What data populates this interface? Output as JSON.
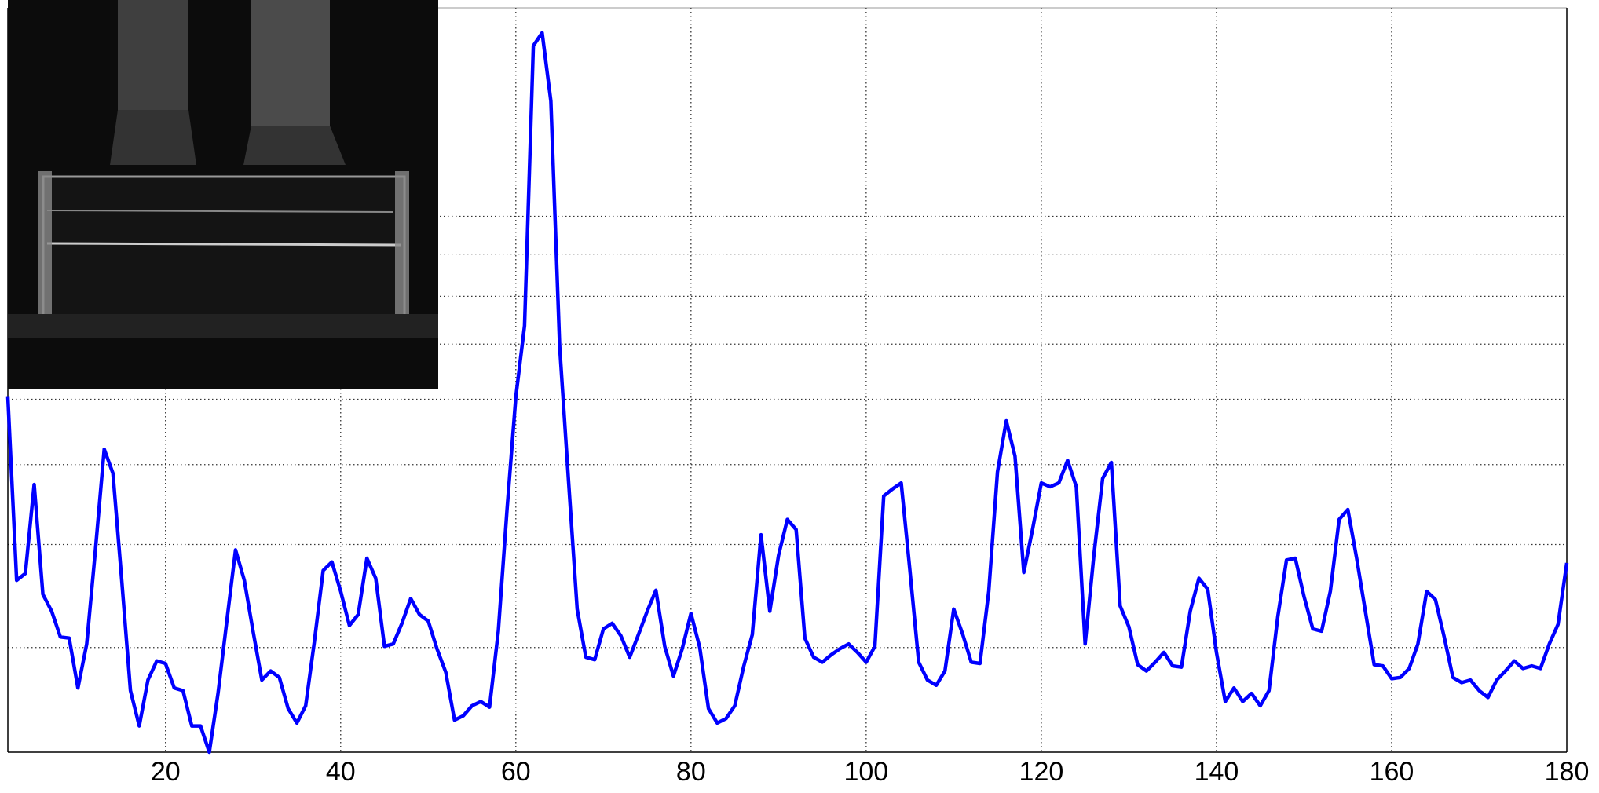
{
  "chart_data": {
    "type": "line",
    "color": "#0000ff",
    "yscale": "log",
    "grid": true,
    "xlim": [
      2,
      180
    ],
    "xticks": [
      20,
      40,
      60,
      80,
      100,
      120,
      140,
      160,
      180
    ],
    "ylim": [
      2.24,
      17.9
    ],
    "yticks": [
      3,
      4,
      5,
      6,
      7,
      8,
      9,
      10
    ],
    "x": [
      2,
      3,
      4,
      5,
      6,
      7,
      8,
      9,
      10,
      11,
      12,
      13,
      14,
      15,
      16,
      17,
      18,
      19,
      20,
      21,
      22,
      23,
      24,
      25,
      26,
      27,
      28,
      29,
      30,
      31,
      32,
      33,
      34,
      35,
      36,
      37,
      38,
      39,
      40,
      41,
      42,
      43,
      44,
      45,
      46,
      47,
      48,
      49,
      50,
      51,
      52,
      53,
      54,
      55,
      56,
      57,
      58,
      59,
      60,
      61,
      62,
      63,
      64,
      65,
      66,
      67,
      68,
      69,
      70,
      71,
      72,
      73,
      74,
      75,
      76,
      77,
      78,
      79,
      80,
      81,
      82,
      83,
      84,
      85,
      86,
      87,
      88,
      89,
      90,
      91,
      92,
      93,
      94,
      95,
      96,
      97,
      98,
      99,
      100,
      101,
      102,
      103,
      104,
      105,
      106,
      107,
      108,
      109,
      110,
      111,
      112,
      113,
      114,
      115,
      116,
      117,
      118,
      119,
      120,
      121,
      122,
      123,
      124,
      125,
      126,
      127,
      128,
      129,
      130,
      131,
      132,
      133,
      134,
      135,
      136,
      137,
      138,
      139,
      140,
      141,
      142,
      143,
      144,
      145,
      146,
      147,
      148,
      149,
      150,
      151,
      152,
      153,
      154,
      155,
      156,
      157,
      158,
      159,
      160,
      161,
      162,
      163,
      164,
      165,
      166,
      167,
      168,
      169,
      170,
      171,
      172,
      173,
      174,
      175,
      176,
      177,
      178,
      179,
      180
    ],
    "values": [
      6.04,
      3.62,
      3.69,
      4.73,
      3.48,
      3.32,
      3.09,
      3.08,
      2.68,
      3.03,
      3.94,
      5.22,
      4.88,
      3.62,
      2.66,
      2.41,
      2.74,
      2.89,
      2.87,
      2.68,
      2.66,
      2.41,
      2.41,
      2.24,
      2.64,
      3.23,
      3.94,
      3.62,
      3.14,
      2.74,
      2.81,
      2.76,
      2.53,
      2.43,
      2.55,
      3.05,
      3.72,
      3.81,
      3.51,
      3.19,
      3.29,
      3.85,
      3.64,
      3.01,
      3.03,
      3.21,
      3.44,
      3.29,
      3.23,
      2.99,
      2.8,
      2.45,
      2.48,
      2.55,
      2.58,
      2.54,
      3.14,
      4.41,
      6.04,
      7.37,
      16.1,
      16.7,
      13.8,
      6.96,
      4.81,
      3.34,
      2.92,
      2.9,
      3.16,
      3.21,
      3.1,
      2.92,
      3.11,
      3.32,
      3.52,
      3.01,
      2.77,
      2.99,
      3.3,
      3.0,
      2.53,
      2.43,
      2.46,
      2.55,
      2.84,
      3.11,
      4.11,
      3.32,
      3.88,
      4.29,
      4.17,
      3.08,
      2.92,
      2.88,
      2.94,
      2.99,
      3.03,
      2.96,
      2.88,
      3.01,
      4.58,
      4.67,
      4.75,
      3.72,
      2.88,
      2.74,
      2.7,
      2.81,
      3.34,
      3.12,
      2.88,
      2.87,
      3.51,
      4.9,
      5.65,
      5.12,
      3.7,
      4.17,
      4.75,
      4.7,
      4.75,
      5.06,
      4.7,
      3.03,
      3.88,
      4.81,
      5.03,
      3.37,
      3.18,
      2.86,
      2.81,
      2.88,
      2.96,
      2.85,
      2.84,
      3.32,
      3.64,
      3.53,
      2.96,
      2.58,
      2.68,
      2.58,
      2.64,
      2.55,
      2.66,
      3.27,
      3.83,
      3.85,
      3.46,
      3.16,
      3.14,
      3.51,
      4.29,
      4.41,
      3.85,
      3.32,
      2.86,
      2.85,
      2.75,
      2.76,
      2.83,
      3.03,
      3.51,
      3.43,
      3.09,
      2.76,
      2.72,
      2.74,
      2.66,
      2.61,
      2.74,
      2.81,
      2.89,
      2.83,
      2.85,
      2.83,
      3.03,
      3.2,
      3.8
    ]
  }
}
